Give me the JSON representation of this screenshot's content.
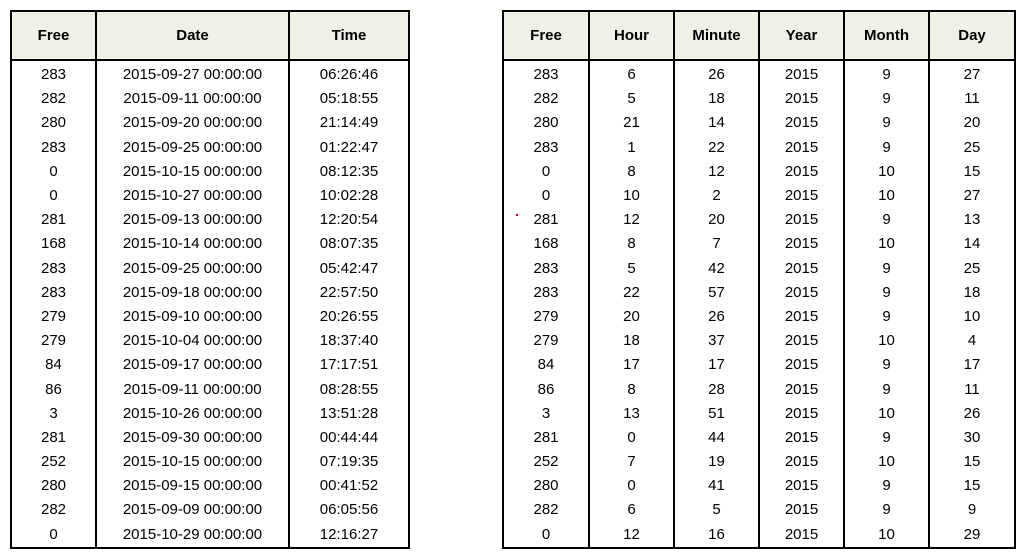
{
  "left_table": {
    "columns": [
      "Free",
      "Date",
      "Time"
    ],
    "rows": [
      [
        "283",
        "2015-09-27 00:00:00",
        "06:26:46"
      ],
      [
        "282",
        "2015-09-11 00:00:00",
        "05:18:55"
      ],
      [
        "280",
        "2015-09-20 00:00:00",
        "21:14:49"
      ],
      [
        "283",
        "2015-09-25 00:00:00",
        "01:22:47"
      ],
      [
        "0",
        "2015-10-15 00:00:00",
        "08:12:35"
      ],
      [
        "0",
        "2015-10-27 00:00:00",
        "10:02:28"
      ],
      [
        "281",
        "2015-09-13 00:00:00",
        "12:20:54"
      ],
      [
        "168",
        "2015-10-14 00:00:00",
        "08:07:35"
      ],
      [
        "283",
        "2015-09-25 00:00:00",
        "05:42:47"
      ],
      [
        "283",
        "2015-09-18 00:00:00",
        "22:57:50"
      ],
      [
        "279",
        "2015-09-10 00:00:00",
        "20:26:55"
      ],
      [
        "279",
        "2015-10-04 00:00:00",
        "18:37:40"
      ],
      [
        "84",
        "2015-09-17 00:00:00",
        "17:17:51"
      ],
      [
        "86",
        "2015-09-11 00:00:00",
        "08:28:55"
      ],
      [
        "3",
        "2015-10-26 00:00:00",
        "13:51:28"
      ],
      [
        "281",
        "2015-09-30 00:00:00",
        "00:44:44"
      ],
      [
        "252",
        "2015-10-15 00:00:00",
        "07:19:35"
      ],
      [
        "280",
        "2015-09-15 00:00:00",
        "00:41:52"
      ],
      [
        "282",
        "2015-09-09 00:00:00",
        "06:05:56"
      ],
      [
        "0",
        "2015-10-29 00:00:00",
        "12:16:27"
      ]
    ]
  },
  "right_table": {
    "columns": [
      "Free",
      "Hour",
      "Minute",
      "Year",
      "Month",
      "Day"
    ],
    "rows": [
      [
        "283",
        "6",
        "26",
        "2015",
        "9",
        "27"
      ],
      [
        "282",
        "5",
        "18",
        "2015",
        "9",
        "11"
      ],
      [
        "280",
        "21",
        "14",
        "2015",
        "9",
        "20"
      ],
      [
        "283",
        "1",
        "22",
        "2015",
        "9",
        "25"
      ],
      [
        "0",
        "8",
        "12",
        "2015",
        "10",
        "15"
      ],
      [
        "0",
        "10",
        "2",
        "2015",
        "10",
        "27"
      ],
      [
        "281",
        "12",
        "20",
        "2015",
        "9",
        "13"
      ],
      [
        "168",
        "8",
        "7",
        "2015",
        "10",
        "14"
      ],
      [
        "283",
        "5",
        "42",
        "2015",
        "9",
        "25"
      ],
      [
        "283",
        "22",
        "57",
        "2015",
        "9",
        "18"
      ],
      [
        "279",
        "20",
        "26",
        "2015",
        "9",
        "10"
      ],
      [
        "279",
        "18",
        "37",
        "2015",
        "10",
        "4"
      ],
      [
        "84",
        "17",
        "17",
        "2015",
        "9",
        "17"
      ],
      [
        "86",
        "8",
        "28",
        "2015",
        "9",
        "11"
      ],
      [
        "3",
        "13",
        "51",
        "2015",
        "10",
        "26"
      ],
      [
        "281",
        "0",
        "44",
        "2015",
        "9",
        "30"
      ],
      [
        "252",
        "7",
        "19",
        "2015",
        "10",
        "15"
      ],
      [
        "280",
        "0",
        "41",
        "2015",
        "9",
        "15"
      ],
      [
        "282",
        "6",
        "5",
        "2015",
        "9",
        "9"
      ],
      [
        "0",
        "12",
        "16",
        "2015",
        "10",
        "29"
      ]
    ]
  },
  "colors": {
    "header_bg": "#eef2e6",
    "border": "#000000",
    "marker": "#d00000"
  }
}
